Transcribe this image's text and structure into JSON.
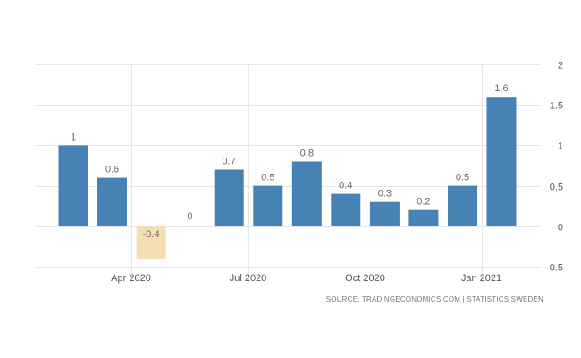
{
  "chart_data": {
    "type": "bar",
    "categories": [
      "Feb 2020",
      "Mar 2020",
      "Apr 2020",
      "May 2020",
      "Jun 2020",
      "Jul 2020",
      "Aug 2020",
      "Sep 2020",
      "Oct 2020",
      "Nov 2020",
      "Dec 2020",
      "Jan 2021"
    ],
    "values": [
      1,
      0.6,
      -0.4,
      0,
      0.7,
      0.5,
      0.8,
      0.4,
      0.3,
      0.2,
      0.5,
      1.6
    ],
    "value_labels": [
      "1",
      "0.6",
      "-0.4",
      "0",
      "0.7",
      "0.5",
      "0.8",
      "0.4",
      "0.3",
      "0.2",
      "0.5",
      "1.6"
    ],
    "x_tick_labels": [
      {
        "category": "Apr 2020",
        "label": "Apr 2020"
      },
      {
        "category": "Jul 2020",
        "label": "Jul 2020"
      },
      {
        "category": "Oct 2020",
        "label": "Oct 2020"
      },
      {
        "category": "Jan 2021",
        "label": "Jan 2021"
      }
    ],
    "y_ticks": [
      2,
      1.5,
      1,
      0.5,
      0,
      -0.5
    ],
    "y_tick_labels": [
      "2",
      "1.5",
      "1",
      "0.5",
      "0",
      "-0.5"
    ],
    "ylim": [
      -0.5,
      2
    ],
    "y_axis_side": "right",
    "grid": true,
    "title": "",
    "xlabel": "",
    "ylabel": "",
    "colors": {
      "positive": "#4682b4",
      "negative": "#f5deb3",
      "grid": "#e6e6e6"
    }
  },
  "source": "SOURCE: TRADINGECONOMICS.COM  |  STATISTICS SWEDEN"
}
